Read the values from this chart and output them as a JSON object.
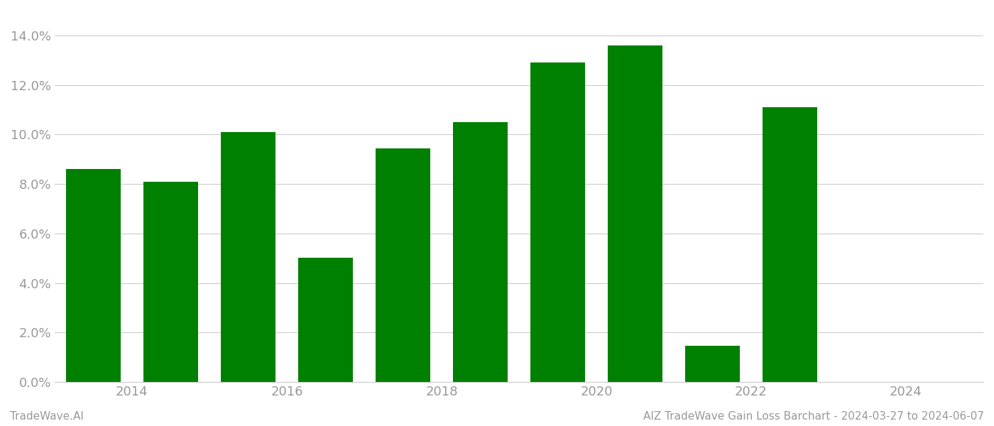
{
  "years": [
    2013,
    2014,
    2015,
    2016,
    2017,
    2018,
    2019,
    2020,
    2021,
    2022,
    2023
  ],
  "values": [
    0.0862,
    0.0808,
    0.101,
    0.0502,
    0.0945,
    0.105,
    0.129,
    0.136,
    0.0148,
    0.111,
    0.0
  ],
  "bar_color": "#008000",
  "background_color": "#ffffff",
  "ylim": [
    0,
    0.15
  ],
  "yticks": [
    0.0,
    0.02,
    0.04,
    0.06,
    0.08,
    0.1,
    0.12,
    0.14
  ],
  "xtick_positions": [
    2013.5,
    2015.5,
    2017.5,
    2019.5,
    2021.5,
    2023.5
  ],
  "xtick_labels": [
    "2014",
    "2016",
    "2018",
    "2020",
    "2022",
    "2024"
  ],
  "xlim": [
    2012.5,
    2024.5
  ],
  "footer_left": "TradeWave.AI",
  "footer_right": "AIZ TradeWave Gain Loss Barchart - 2024-03-27 to 2024-06-07",
  "grid_color": "#cccccc",
  "tick_label_color": "#999999",
  "footer_color": "#999999",
  "bar_width": 0.7
}
